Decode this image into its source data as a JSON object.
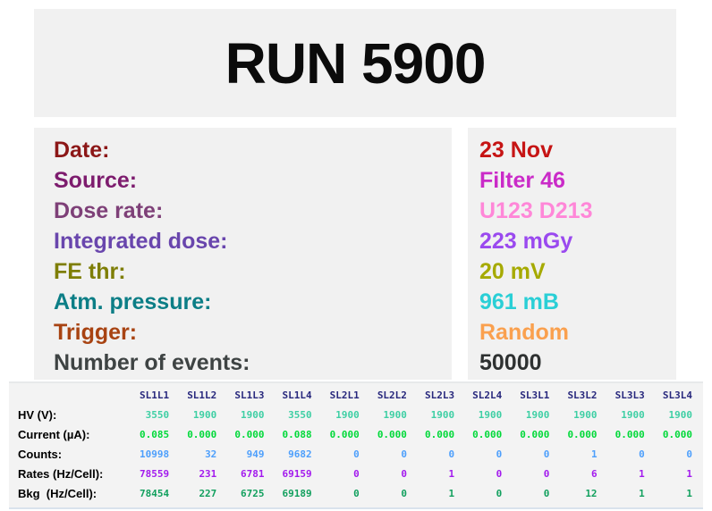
{
  "title": "RUN 5900",
  "info": {
    "rows": [
      {
        "key": "date",
        "label": "Date:",
        "value": "23 Nov",
        "label_color": "#8c1717",
        "value_color": "#c61414"
      },
      {
        "key": "source",
        "label": "Source:",
        "value": "Filter 46",
        "label_color": "#7d1c6e",
        "value_color": "#ca2bc8"
      },
      {
        "key": "dose-rate",
        "label": "Dose rate:",
        "value": "U123 D213",
        "label_color": "#7e4078",
        "value_color": "#ff87d8"
      },
      {
        "key": "integrated-dose",
        "label": "Integrated dose:",
        "value": "223 mGy",
        "label_color": "#6946ad",
        "value_color": "#9a49ef"
      },
      {
        "key": "fe-thr",
        "label": "FE thr:",
        "value": "20 mV",
        "label_color": "#7e7e06",
        "value_color": "#a6aa00"
      },
      {
        "key": "atm-pressure",
        "label": "Atm. pressure:",
        "value": "961 mB",
        "label_color": "#0c7e86",
        "value_color": "#2acfd6"
      },
      {
        "key": "trigger",
        "label": "Trigger:",
        "value": "Random",
        "label_color": "#a84312",
        "value_color": "#faa04e"
      },
      {
        "key": "number-of-events",
        "label": "Number of events:",
        "value": "50000",
        "label_color": "#3e4343",
        "value_color": "#2e3131"
      }
    ]
  },
  "table": {
    "header_color": "#28287d",
    "label_color": "#000000",
    "columns": [
      "SL1L1",
      "SL1L2",
      "SL1L3",
      "SL1L4",
      "SL2L1",
      "SL2L2",
      "SL2L3",
      "SL2L4",
      "SL3L1",
      "SL3L2",
      "SL3L3",
      "SL3L4"
    ],
    "rows": [
      {
        "key": "hv",
        "label": "HV (V):",
        "color": "#3ecfa4",
        "values": [
          "3550",
          "1900",
          "1900",
          "3550",
          "1900",
          "1900",
          "1900",
          "1900",
          "1900",
          "1900",
          "1900",
          "1900"
        ]
      },
      {
        "key": "current",
        "label": "Current (µA):",
        "color": "#00d939",
        "values": [
          "0.085",
          "0.000",
          "0.000",
          "0.088",
          "0.000",
          "0.000",
          "0.000",
          "0.000",
          "0.000",
          "0.000",
          "0.000",
          "0.000"
        ]
      },
      {
        "key": "counts",
        "label": "Counts:",
        "color": "#4d9ffc",
        "values": [
          "10998",
          "32",
          "949",
          "9682",
          "0",
          "0",
          "0",
          "0",
          "0",
          "1",
          "0",
          "0"
        ]
      },
      {
        "key": "rates",
        "label": "Rates (Hz/Cell):",
        "color": "#a31aee",
        "values": [
          "78559",
          "231",
          "6781",
          "69159",
          "0",
          "0",
          "1",
          "0",
          "0",
          "6",
          "1",
          "1"
        ]
      },
      {
        "key": "bkg",
        "label": "Bkg  (Hz/Cell):",
        "color": "#12a05e",
        "values": [
          "78454",
          "227",
          "6725",
          "69189",
          "0",
          "0",
          "1",
          "0",
          "0",
          "12",
          "1",
          "1"
        ]
      }
    ]
  }
}
